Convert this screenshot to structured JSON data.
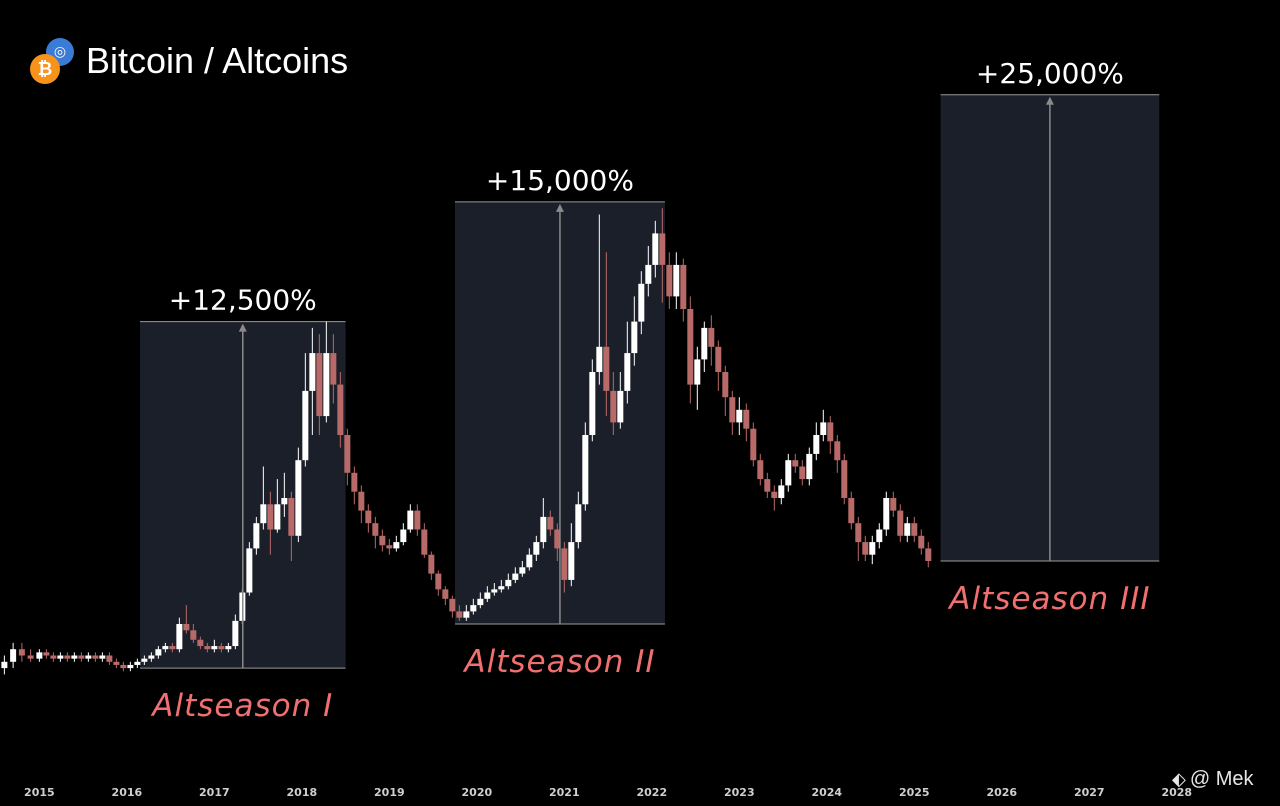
{
  "header": {
    "title": "Bitcoin / Altcoins",
    "icons": [
      "bitcoin-icon",
      "altcoin-icon"
    ],
    "bitcoin_symbol": "₿"
  },
  "colors": {
    "background": "#000000",
    "bull": "#ffffff",
    "bear": "#b86a68",
    "box_fill": "#1b1f29",
    "box_stroke": "#9a9a9a",
    "arrow": "#8a8a8a",
    "label": "#f07070",
    "bitcoin": "#f7931a",
    "altcoin": "#3a7bd5"
  },
  "watermark": "@ Mek",
  "chart_data": {
    "type": "candlestick",
    "title": "Bitcoin / Altcoins",
    "xlabel": "",
    "ylabel": "",
    "x_ticks": [
      "2015",
      "2016",
      "2017",
      "2018",
      "2019",
      "2020",
      "2021",
      "2022",
      "2023",
      "2024",
      "2025",
      "2026",
      "2027",
      "2028"
    ],
    "xlim": [
      2014.55,
      2029.18
    ],
    "ylim": [
      0,
      100
    ],
    "y_axis_visible": false,
    "grid": false,
    "candles": [
      [
        2014.6,
        13,
        14,
        15,
        12
      ],
      [
        2014.7,
        14,
        16,
        17,
        13
      ],
      [
        2014.8,
        16,
        15,
        17,
        14
      ],
      [
        2014.9,
        15,
        14.5,
        16,
        14
      ],
      [
        2015.0,
        14.5,
        15.5,
        16,
        14
      ],
      [
        2015.08,
        15.5,
        15,
        16,
        14.5
      ],
      [
        2015.16,
        15,
        14.5,
        15.5,
        14
      ],
      [
        2015.24,
        14.5,
        15,
        15.5,
        14
      ],
      [
        2015.32,
        15,
        14.5,
        15.5,
        14
      ],
      [
        2015.4,
        14.5,
        15,
        15.5,
        14
      ],
      [
        2015.48,
        15,
        14.5,
        15.5,
        14
      ],
      [
        2015.56,
        14.5,
        15,
        15.5,
        14
      ],
      [
        2015.64,
        15,
        14.5,
        15.5,
        14
      ],
      [
        2015.72,
        14.5,
        15,
        15.5,
        14
      ],
      [
        2015.8,
        15,
        14,
        15.5,
        13.5
      ],
      [
        2015.88,
        14,
        13.5,
        14.5,
        13
      ],
      [
        2015.96,
        13.5,
        13,
        14,
        12.5
      ],
      [
        2016.04,
        13,
        13.5,
        14,
        12.5
      ],
      [
        2016.12,
        13.5,
        14,
        14.5,
        13
      ],
      [
        2016.2,
        14,
        14.5,
        15,
        13.5
      ],
      [
        2016.28,
        14.5,
        15,
        15.5,
        14
      ],
      [
        2016.36,
        15,
        16,
        16.5,
        14.5
      ],
      [
        2016.44,
        16,
        16.5,
        17,
        15.5
      ],
      [
        2016.52,
        16.5,
        16,
        17,
        15.5
      ],
      [
        2016.6,
        16,
        20,
        21,
        15.5
      ],
      [
        2016.68,
        20,
        19,
        23,
        18.5
      ],
      [
        2016.76,
        19,
        17.5,
        20,
        17
      ],
      [
        2016.84,
        17.5,
        16.5,
        18,
        16
      ],
      [
        2016.92,
        16.5,
        16,
        17,
        15.5
      ],
      [
        2017.0,
        16,
        16.5,
        17.5,
        15.5
      ],
      [
        2017.08,
        16.5,
        16,
        17,
        15.5
      ],
      [
        2017.16,
        16,
        16.5,
        17,
        15.5
      ],
      [
        2017.24,
        16.5,
        20.5,
        21.5,
        16
      ],
      [
        2017.32,
        20.5,
        25,
        25.5,
        20
      ],
      [
        2017.4,
        25,
        32,
        33,
        24.5
      ],
      [
        2017.48,
        32,
        36,
        37,
        31
      ],
      [
        2017.56,
        36,
        39,
        45,
        35
      ],
      [
        2017.64,
        39,
        35,
        41,
        31
      ],
      [
        2017.72,
        35,
        39,
        43,
        34.5
      ],
      [
        2017.8,
        39,
        40,
        44,
        37
      ],
      [
        2017.88,
        40,
        34,
        41,
        30
      ],
      [
        2017.96,
        34,
        46,
        48,
        33
      ],
      [
        2018.04,
        46,
        57,
        63,
        45
      ],
      [
        2018.12,
        57,
        63,
        67,
        50
      ],
      [
        2018.2,
        63,
        53,
        66,
        50
      ],
      [
        2018.28,
        53,
        63,
        68,
        52
      ],
      [
        2018.36,
        63,
        58,
        66,
        55
      ],
      [
        2018.44,
        58,
        50,
        60,
        48
      ],
      [
        2018.52,
        50,
        44,
        51,
        42
      ],
      [
        2018.6,
        44,
        41,
        45,
        39
      ],
      [
        2018.68,
        41,
        38,
        42,
        36
      ],
      [
        2018.76,
        38,
        36,
        39,
        34.5
      ],
      [
        2018.84,
        36,
        34,
        37,
        32
      ],
      [
        2018.92,
        34,
        32.5,
        35,
        31.5
      ],
      [
        2019.0,
        32.5,
        32,
        33.5,
        31
      ],
      [
        2019.08,
        32,
        33,
        34,
        31.5
      ],
      [
        2019.16,
        33,
        35,
        36,
        32.5
      ],
      [
        2019.24,
        35,
        38,
        39,
        34.5
      ],
      [
        2019.32,
        38,
        35,
        39,
        34
      ],
      [
        2019.4,
        35,
        31,
        36,
        30.5
      ],
      [
        2019.48,
        31,
        28,
        31.5,
        27
      ],
      [
        2019.56,
        28,
        25.5,
        28.5,
        24.5
      ],
      [
        2019.64,
        25.5,
        24,
        26,
        23
      ],
      [
        2019.72,
        24,
        22,
        24.5,
        21
      ],
      [
        2019.8,
        22,
        21,
        23,
        20.5
      ],
      [
        2019.88,
        21,
        22,
        23,
        20.5
      ],
      [
        2019.96,
        22,
        23,
        24,
        21.5
      ],
      [
        2020.04,
        23,
        24,
        25,
        22.5
      ],
      [
        2020.12,
        24,
        25,
        26,
        23.5
      ],
      [
        2020.2,
        25,
        25.5,
        26.5,
        24.5
      ],
      [
        2020.28,
        25.5,
        26,
        27,
        25
      ],
      [
        2020.36,
        26,
        27,
        28,
        25.5
      ],
      [
        2020.44,
        27,
        28,
        29,
        26.5
      ],
      [
        2020.52,
        28,
        29,
        30,
        27.5
      ],
      [
        2020.6,
        29,
        31,
        32,
        28.5
      ],
      [
        2020.68,
        31,
        33,
        34,
        30
      ],
      [
        2020.76,
        33,
        37,
        40,
        32
      ],
      [
        2020.84,
        37,
        35,
        38,
        34
      ],
      [
        2020.92,
        35,
        32,
        36,
        30
      ],
      [
        2021.0,
        32,
        27,
        33,
        25
      ],
      [
        2021.08,
        27,
        33,
        36,
        26
      ],
      [
        2021.16,
        33,
        39,
        41,
        32
      ],
      [
        2021.24,
        39,
        50,
        52,
        38
      ],
      [
        2021.32,
        50,
        60,
        62,
        49
      ],
      [
        2021.4,
        60,
        64,
        85,
        58
      ],
      [
        2021.48,
        64,
        57,
        79,
        53
      ],
      [
        2021.56,
        57,
        52,
        60,
        50
      ],
      [
        2021.64,
        52,
        57,
        60,
        51
      ],
      [
        2021.72,
        57,
        63,
        68,
        55
      ],
      [
        2021.8,
        63,
        68,
        72,
        61
      ],
      [
        2021.88,
        68,
        74,
        76,
        66
      ],
      [
        2021.96,
        74,
        77,
        80,
        72
      ],
      [
        2022.04,
        77,
        82,
        84,
        75
      ],
      [
        2022.12,
        82,
        77,
        86,
        71
      ],
      [
        2022.2,
        77,
        72,
        79,
        70
      ],
      [
        2022.28,
        72,
        77,
        79,
        70
      ],
      [
        2022.36,
        77,
        70,
        78,
        68
      ],
      [
        2022.44,
        70,
        58,
        72,
        55
      ],
      [
        2022.52,
        58,
        62,
        64,
        54
      ],
      [
        2022.6,
        62,
        67,
        68,
        60
      ],
      [
        2022.68,
        67,
        64,
        69,
        61
      ],
      [
        2022.76,
        64,
        60,
        65,
        57
      ],
      [
        2022.84,
        60,
        56,
        61,
        53
      ],
      [
        2022.92,
        56,
        52,
        57,
        50
      ],
      [
        2023.0,
        52,
        54,
        56,
        50
      ],
      [
        2023.08,
        54,
        51,
        55,
        49
      ],
      [
        2023.16,
        51,
        46,
        52,
        45
      ],
      [
        2023.24,
        46,
        43,
        47,
        42
      ],
      [
        2023.32,
        43,
        41,
        44,
        40
      ],
      [
        2023.4,
        41,
        40,
        42,
        38
      ],
      [
        2023.48,
        40,
        42,
        43,
        39
      ],
      [
        2023.56,
        42,
        46,
        47,
        41
      ],
      [
        2023.64,
        46,
        45,
        47,
        44
      ],
      [
        2023.72,
        45,
        43,
        46,
        42
      ],
      [
        2023.8,
        43,
        47,
        48,
        42
      ],
      [
        2023.88,
        47,
        50,
        52,
        46
      ],
      [
        2023.96,
        50,
        52,
        54,
        49
      ],
      [
        2024.04,
        52,
        49,
        53,
        47
      ],
      [
        2024.12,
        49,
        46,
        50,
        44
      ],
      [
        2024.2,
        46,
        40,
        47,
        39
      ],
      [
        2024.28,
        40,
        36,
        41,
        35
      ],
      [
        2024.36,
        36,
        33,
        37,
        30
      ],
      [
        2024.44,
        33,
        31,
        34,
        30
      ],
      [
        2024.52,
        31,
        33,
        34,
        29.5
      ],
      [
        2024.6,
        33,
        35,
        36,
        32
      ],
      [
        2024.68,
        35,
        40,
        41,
        34
      ],
      [
        2024.76,
        40,
        38,
        41,
        37
      ],
      [
        2024.84,
        38,
        34,
        39,
        33
      ],
      [
        2024.92,
        34,
        36,
        37,
        33
      ],
      [
        2025.0,
        36,
        34,
        37,
        33
      ],
      [
        2025.08,
        34,
        32,
        35,
        31
      ],
      [
        2025.16,
        32,
        30,
        33,
        29
      ]
    ],
    "annotations": [
      {
        "label": "Altseason I",
        "gain": "+12,500%",
        "x_start": 2016.15,
        "x_end": 2018.5,
        "y_bottom": 13,
        "y_top": 68
      },
      {
        "label": "Altseason II",
        "gain": "+15,000%",
        "x_start": 2019.75,
        "x_end": 2022.15,
        "y_bottom": 20,
        "y_top": 87
      },
      {
        "label": "Altseason III",
        "gain": "+25,000%",
        "x_start": 2025.3,
        "x_end": 2027.8,
        "y_bottom": 30,
        "y_top": 104
      }
    ]
  }
}
